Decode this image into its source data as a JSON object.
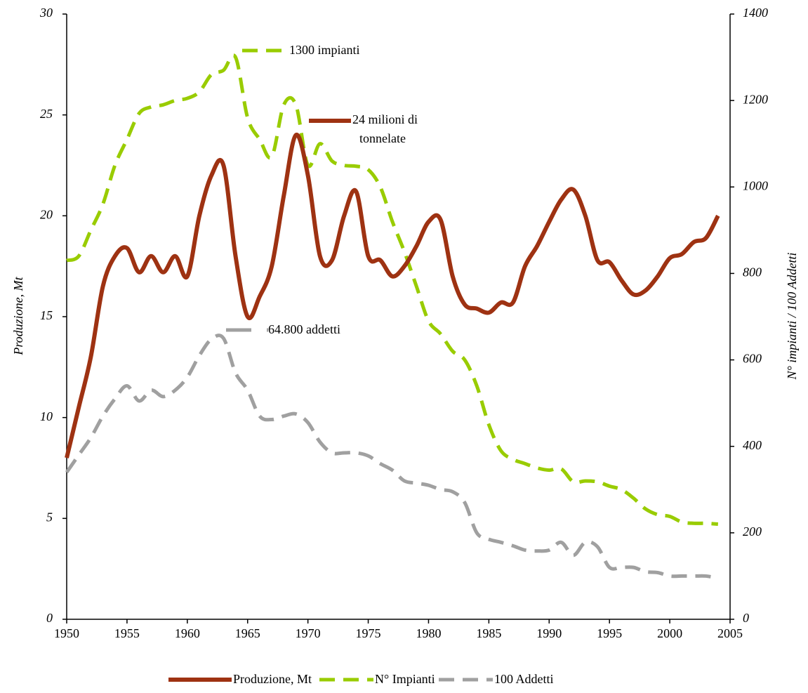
{
  "chart_data": {
    "type": "line",
    "x": [
      1950,
      1951,
      1952,
      1953,
      1954,
      1955,
      1956,
      1957,
      1958,
      1959,
      1960,
      1961,
      1962,
      1963,
      1964,
      1965,
      1966,
      1967,
      1968,
      1969,
      1970,
      1971,
      1972,
      1973,
      1974,
      1975,
      1976,
      1977,
      1978,
      1979,
      1980,
      1981,
      1982,
      1983,
      1984,
      1985,
      1986,
      1987,
      1988,
      1989,
      1990,
      1991,
      1992,
      1993,
      1994,
      1995,
      1996,
      1997,
      1998,
      1999,
      2000,
      2001,
      2002,
      2003,
      2004
    ],
    "series": [
      {
        "name": "Produzione, Mt",
        "color": "#9e3212",
        "axis": "y",
        "values": [
          8.0,
          10.5,
          13,
          16.5,
          18,
          18.4,
          17.2,
          18,
          17.2,
          18,
          17,
          20,
          22,
          22.5,
          18,
          15,
          16,
          17.5,
          21,
          24,
          22,
          18,
          17.8,
          20,
          21.2,
          18,
          17.8,
          17,
          17.5,
          18.5,
          19.7,
          19.8,
          17,
          15.6,
          15.4,
          15.2,
          15.7,
          15.7,
          17.5,
          18.5,
          19.7,
          20.8,
          21.3,
          20,
          17.8,
          17.7,
          16.8,
          16.1,
          16.3,
          17,
          17.9,
          18.1,
          18.7,
          18.9,
          20
        ]
      },
      {
        "name": "N° Impianti",
        "color": "#99cc00",
        "axis": "y2",
        "values": [
          830,
          840,
          900,
          960,
          1050,
          1110,
          1170,
          1185,
          1190,
          1200,
          1205,
          1220,
          1260,
          1270,
          1300,
          1160,
          1110,
          1070,
          1190,
          1190,
          1050,
          1100,
          1060,
          1050,
          1048,
          1040,
          1000,
          920,
          850,
          770,
          690,
          660,
          620,
          600,
          540,
          450,
          390,
          370,
          360,
          350,
          345,
          348,
          318,
          320,
          318,
          308,
          300,
          280,
          255,
          242,
          238,
          225,
          222,
          222,
          220
        ]
      },
      {
        "name": "100 Addetti",
        "color": "#a0a0a0",
        "axis": "y2",
        "values": [
          340,
          380,
          420,
          470,
          510,
          540,
          505,
          530,
          515,
          530,
          560,
          610,
          648,
          650,
          570,
          530,
          470,
          462,
          470,
          475,
          455,
          410,
          385,
          385,
          385,
          378,
          360,
          345,
          320,
          315,
          310,
          300,
          295,
          270,
          200,
          185,
          178,
          170,
          160,
          158,
          160,
          178,
          148,
          178,
          168,
          120,
          120,
          120,
          110,
          108,
          100,
          100,
          100,
          100,
          95
        ]
      }
    ],
    "xlim": [
      1950,
      2005
    ],
    "xticks": [
      1950,
      1955,
      1960,
      1965,
      1970,
      1975,
      1980,
      1985,
      1990,
      1995,
      2000,
      2005
    ],
    "ylim": [
      0,
      30
    ],
    "yticks": [
      0,
      5,
      10,
      15,
      20,
      25,
      30
    ],
    "y2lim": [
      0,
      1400
    ],
    "y2ticks": [
      0,
      200,
      400,
      600,
      800,
      1000,
      1200,
      1400
    ],
    "ylabel": "Produzione, Mt",
    "y2label": "N° impianti / 100 Addetti",
    "annotations": [
      "1300 impianti",
      [
        "24 milioni di",
        "tonnelate"
      ],
      "64.800 addetti"
    ],
    "legend": "bottom"
  }
}
